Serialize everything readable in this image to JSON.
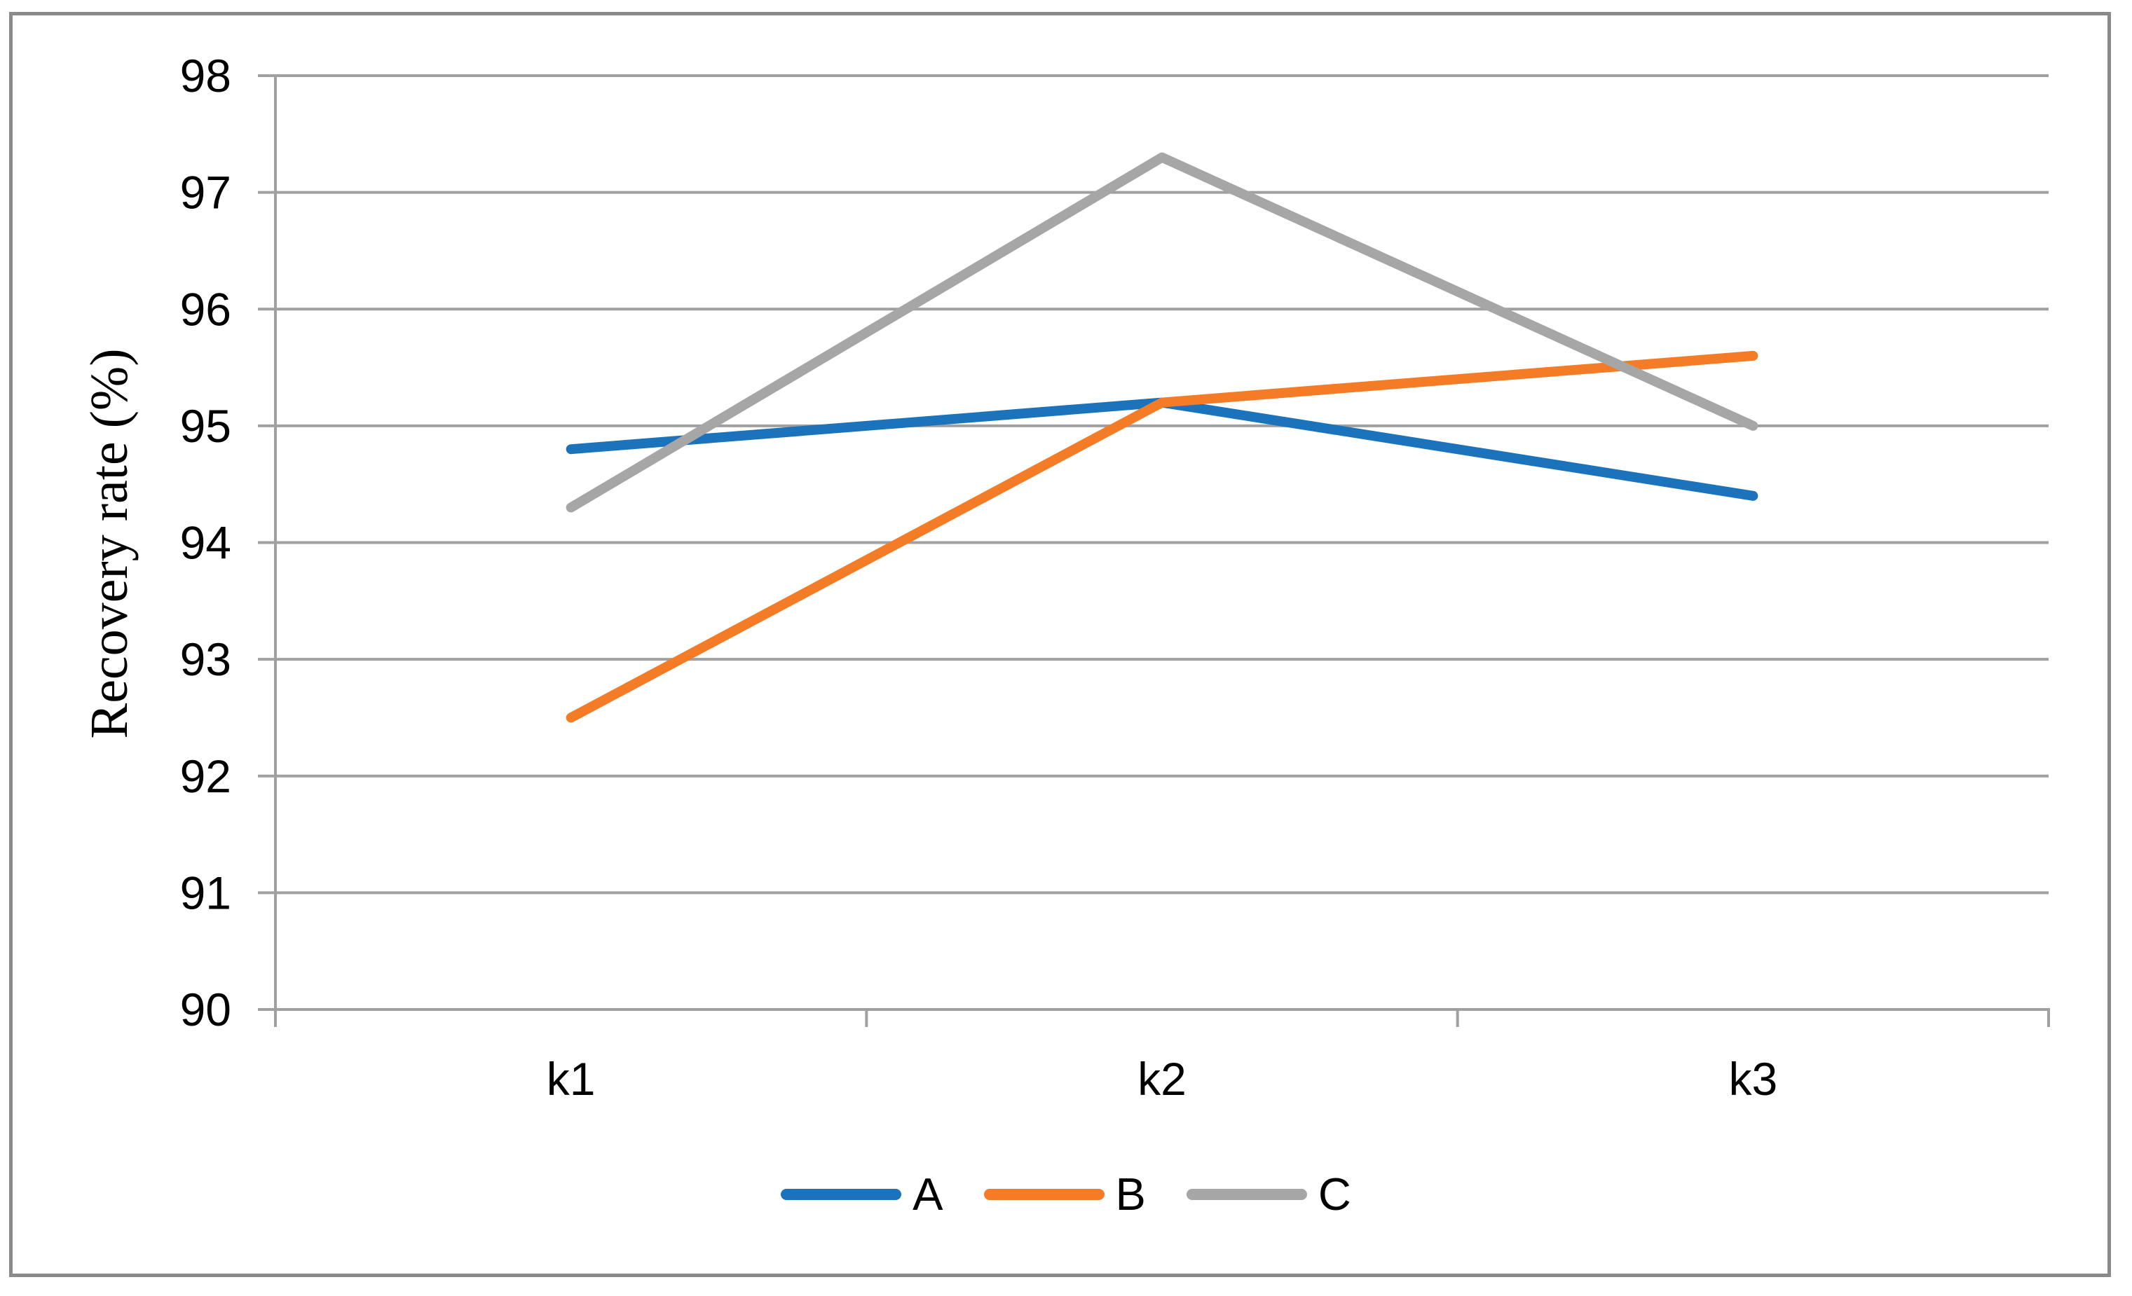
{
  "chart_data": {
    "type": "line",
    "title": "",
    "xlabel": "",
    "ylabel": "Recovery rate (%)",
    "categories": [
      "k1",
      "k2",
      "k3"
    ],
    "series": [
      {
        "name": "A",
        "color": "#1b73bc",
        "values": [
          94.8,
          95.2,
          94.4
        ]
      },
      {
        "name": "B",
        "color": "#f57c26",
        "values": [
          92.5,
          95.2,
          95.6
        ]
      },
      {
        "name": "C",
        "color": "#a6a6a6",
        "values": [
          94.3,
          97.3,
          95.0
        ]
      }
    ],
    "ylim": [
      90,
      98
    ],
    "yticks": [
      90,
      91,
      92,
      93,
      94,
      95,
      96,
      97,
      98
    ],
    "grid": true,
    "legend_position": "bottom"
  },
  "colors": {
    "background": "#ffffff",
    "border": "#8a8a8a",
    "gridline": "#a0a0a0",
    "axis": "#a0a0a0",
    "text": "#000000"
  }
}
